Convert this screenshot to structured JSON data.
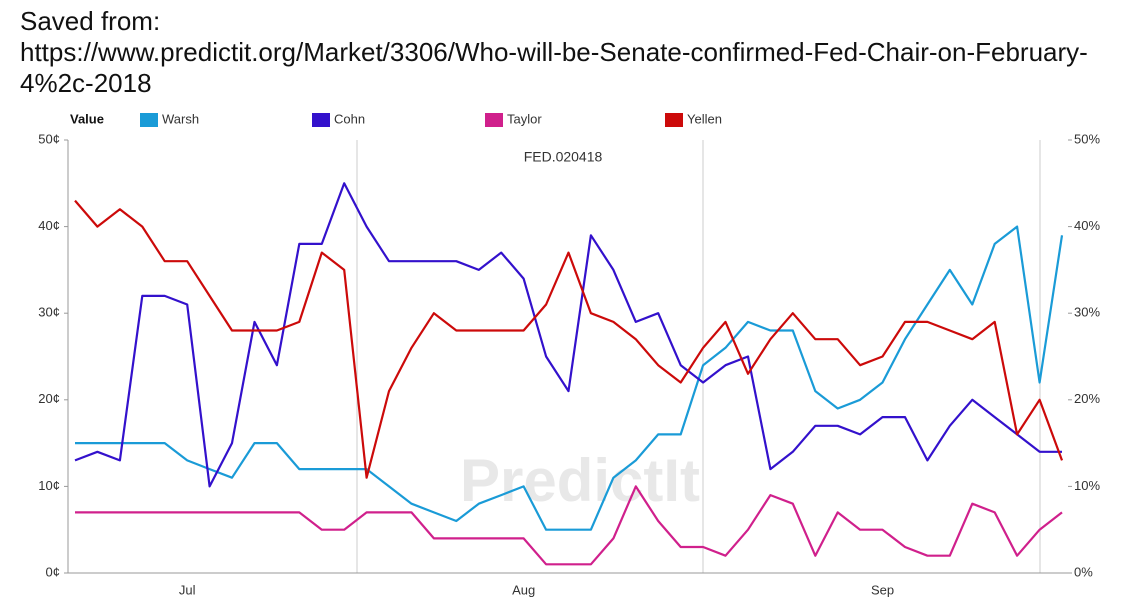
{
  "header": {
    "line1": "Saved from:",
    "url": "https://www.predictit.org/Market/3306/Who-will-be-Senate-confirmed-Fed-Chair-on-February-4%2c-2018"
  },
  "chart_data": {
    "type": "line",
    "title": "FED.020418",
    "watermark": "PredictIt",
    "legend_title": "Value",
    "legend": "top-left",
    "grid": false,
    "categories": [
      null,
      null,
      null,
      null,
      null,
      "Jul",
      null,
      null,
      null,
      null,
      null,
      null,
      null,
      null,
      null,
      null,
      null,
      null,
      null,
      null,
      "Aug",
      null,
      null,
      null,
      null,
      null,
      null,
      null,
      null,
      null,
      null,
      null,
      null,
      null,
      null,
      null,
      "Sep",
      null,
      null,
      null,
      null,
      null,
      null,
      null,
      null
    ],
    "ylim": [
      0,
      50
    ],
    "yticks": [
      {
        "value": 0,
        "label": "0¢"
      },
      {
        "value": 10,
        "label": "10¢"
      },
      {
        "value": 20,
        "label": "20¢"
      },
      {
        "value": 30,
        "label": "30¢"
      },
      {
        "value": 40,
        "label": "40¢"
      },
      {
        "value": 50,
        "label": "50¢"
      }
    ],
    "y2lim": [
      0,
      50
    ],
    "y2ticks": [
      {
        "value": 0,
        "label": "0%"
      },
      {
        "value": 10,
        "label": "10%"
      },
      {
        "value": 20,
        "label": "20%"
      },
      {
        "value": 30,
        "label": "30%"
      },
      {
        "value": 40,
        "label": "40%"
      },
      {
        "value": 50,
        "label": "50%"
      }
    ],
    "series": [
      {
        "name": "Warsh",
        "color": "#1a9bd7",
        "values": [
          15,
          15,
          15,
          15,
          15,
          13,
          12,
          11,
          15,
          15,
          12,
          12,
          12,
          12,
          10,
          8,
          7,
          6,
          8,
          9,
          10,
          5,
          5,
          5,
          11,
          13,
          16,
          16,
          24,
          26,
          29,
          28,
          28,
          21,
          19,
          20,
          22,
          27,
          31,
          35,
          31,
          38,
          40,
          22,
          39
        ]
      },
      {
        "name": "Cohn",
        "color": "#3311cc",
        "values": [
          13,
          14,
          13,
          32,
          32,
          31,
          10,
          15,
          29,
          24,
          38,
          38,
          45,
          40,
          36,
          36,
          36,
          36,
          35,
          37,
          34,
          25,
          21,
          39,
          35,
          29,
          30,
          24,
          22,
          24,
          25,
          12,
          14,
          17,
          17,
          16,
          18,
          18,
          13,
          17,
          20,
          18,
          16,
          14,
          14
        ]
      },
      {
        "name": "Taylor",
        "color": "#d0208c",
        "values": [
          7,
          7,
          7,
          7,
          7,
          7,
          7,
          7,
          7,
          7,
          7,
          5,
          5,
          7,
          7,
          7,
          4,
          4,
          4,
          4,
          4,
          1,
          1,
          1,
          4,
          10,
          6,
          3,
          3,
          2,
          5,
          9,
          8,
          2,
          7,
          5,
          5,
          3,
          2,
          2,
          8,
          7,
          2,
          5,
          7
        ]
      },
      {
        "name": "Yellen",
        "color": "#cc0a0a",
        "values": [
          43,
          40,
          42,
          40,
          36,
          36,
          32,
          28,
          28,
          28,
          29,
          37,
          35,
          11,
          21,
          26,
          30,
          28,
          28,
          28,
          28,
          31,
          37,
          30,
          29,
          27,
          24,
          22,
          26,
          29,
          23,
          27,
          30,
          27,
          27,
          24,
          25,
          29,
          29,
          28,
          27,
          29,
          16,
          20,
          13
        ]
      }
    ]
  }
}
